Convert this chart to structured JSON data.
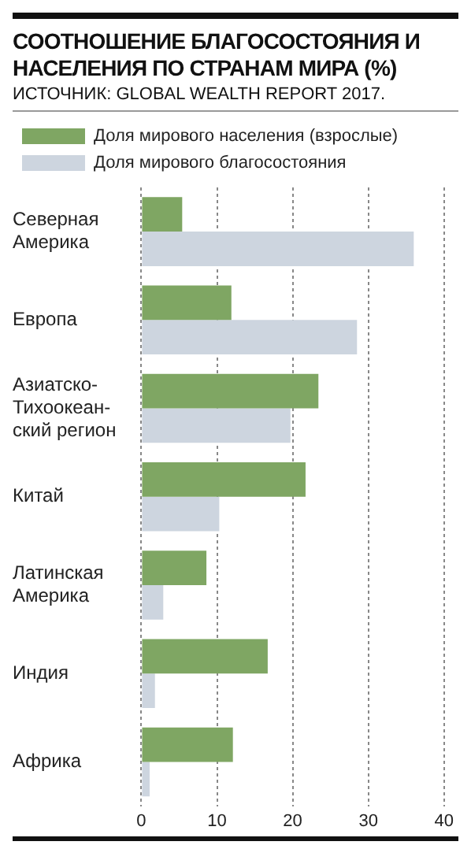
{
  "chart_data": {
    "type": "bar",
    "orientation": "horizontal",
    "title": "СООТНОШЕНИЕ БЛАГОСОСТОЯНИЯ И НАСЕЛЕНИЯ ПО СТРАНАМ МИРА (%)",
    "annotations": [
      "ИСТОЧНИК: GLOBAL WEALTH REPORT 2017."
    ],
    "categories": [
      "Северная\nАмерика",
      "Европа",
      "Азиатско-\nТихоокеан-\nский регион",
      "Китай",
      "Латинская\nАмерика",
      "Индия",
      "Африка"
    ],
    "series": [
      {
        "name": "Доля мирового населения (взрослые)",
        "color": "#7fa663",
        "values": [
          5.4,
          11.9,
          23.4,
          21.7,
          8.6,
          16.7,
          12.1
        ]
      },
      {
        "name": "Доля мирового благосостояния",
        "color": "#cdd5df",
        "values": [
          36,
          28.5,
          19.7,
          10.3,
          2.9,
          1.8,
          1.1
        ]
      }
    ],
    "xlim": [
      0,
      40
    ],
    "xticks": [
      0,
      10,
      20,
      30,
      40
    ],
    "grid": "x",
    "legend": "top"
  }
}
